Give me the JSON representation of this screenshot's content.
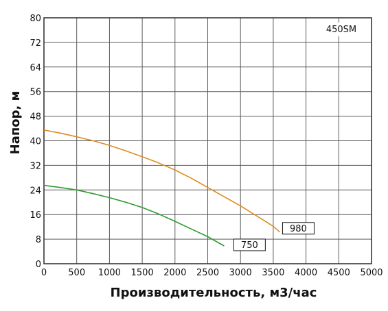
{
  "chart_data": {
    "type": "line",
    "model_label": "450SM",
    "xlabel": "Производительность, м3/час",
    "ylabel": "Напор, м",
    "xlim": [
      0,
      5000
    ],
    "ylim": [
      0,
      80
    ],
    "x_ticks": [
      0,
      500,
      1000,
      1500,
      2000,
      2500,
      3000,
      3500,
      4000,
      4500,
      5000
    ],
    "y_ticks": [
      0,
      8,
      16,
      24,
      32,
      40,
      48,
      56,
      64,
      72,
      80
    ],
    "grid": true,
    "series": [
      {
        "name": "980",
        "color": "#e08a1e",
        "points": [
          [
            0,
            43.5
          ],
          [
            250,
            42.5
          ],
          [
            500,
            41.3
          ],
          [
            750,
            40
          ],
          [
            1000,
            38.5
          ],
          [
            1250,
            36.7
          ],
          [
            1500,
            34.8
          ],
          [
            1750,
            32.8
          ],
          [
            2000,
            30.5
          ],
          [
            2250,
            27.8
          ],
          [
            2500,
            24.8
          ],
          [
            2750,
            21.8
          ],
          [
            3000,
            18.8
          ],
          [
            3250,
            15.5
          ],
          [
            3500,
            12.2
          ],
          [
            3600,
            10.3
          ]
        ]
      },
      {
        "name": "750",
        "color": "#2e9a2e",
        "points": [
          [
            0,
            25.5
          ],
          [
            250,
            24.8
          ],
          [
            500,
            24
          ],
          [
            750,
            22.8
          ],
          [
            1000,
            21.5
          ],
          [
            1250,
            20
          ],
          [
            1500,
            18.3
          ],
          [
            1750,
            16.2
          ],
          [
            2000,
            13.8
          ],
          [
            2250,
            11.3
          ],
          [
            2500,
            8.8
          ],
          [
            2750,
            5.8
          ]
        ]
      }
    ],
    "colors": {
      "grid": "#5a5a5a",
      "frame": "#2a2a2a"
    }
  }
}
